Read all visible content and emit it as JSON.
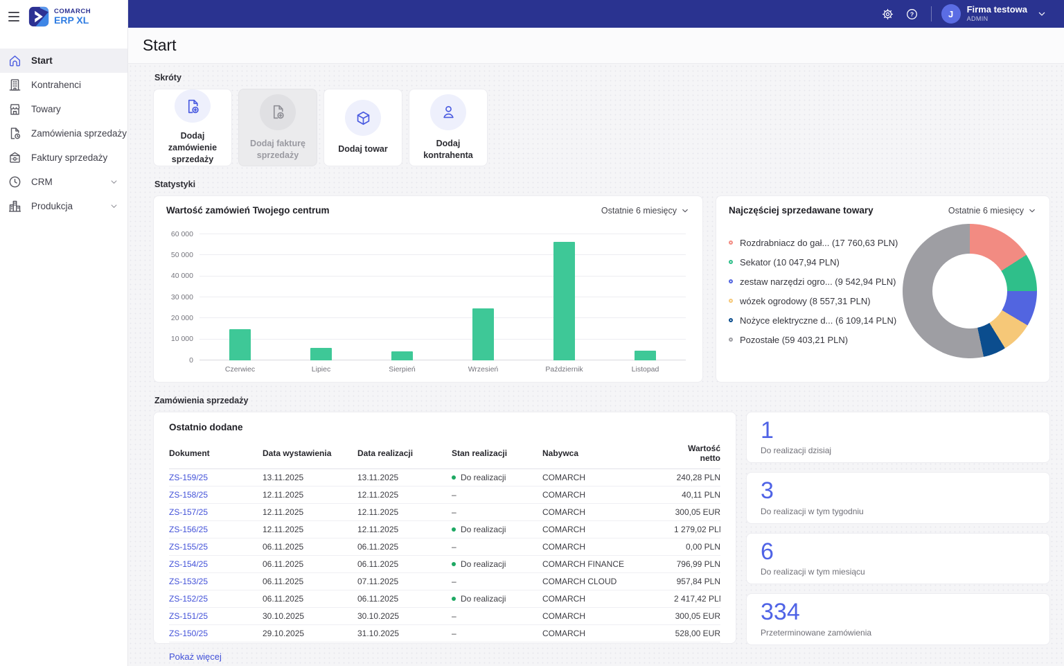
{
  "brand": {
    "name_line1": "COMARCH",
    "name_line2": "ERP XL"
  },
  "topbar": {
    "user": {
      "avatar_initial": "J",
      "company": "Firma testowa",
      "role": "ADMIN"
    }
  },
  "page": {
    "title": "Start"
  },
  "sidebar": {
    "items": [
      {
        "label": "Start",
        "icon": "home-icon",
        "active": true,
        "expandable": false
      },
      {
        "label": "Kontrahenci",
        "icon": "building-icon",
        "active": false,
        "expandable": false
      },
      {
        "label": "Towary",
        "icon": "store-icon",
        "active": false,
        "expandable": false
      },
      {
        "label": "Zamówienia sprzedaży",
        "icon": "order-document-icon",
        "active": false,
        "expandable": false
      },
      {
        "label": "Faktury sprzedaży",
        "icon": "invoice-icon",
        "active": false,
        "expandable": false
      },
      {
        "label": "CRM",
        "icon": "clock-icon",
        "active": false,
        "expandable": true
      },
      {
        "label": "Produkcja",
        "icon": "factory-icon",
        "active": false,
        "expandable": true
      }
    ]
  },
  "shortcuts": {
    "heading": "Skróty",
    "items": [
      {
        "label": "Dodaj zamówienie sprzedaży",
        "icon": "file-plus-icon",
        "disabled": false
      },
      {
        "label": "Dodaj fakturę sprzedaży",
        "icon": "file-plus-icon",
        "disabled": true
      },
      {
        "label": "Dodaj towar",
        "icon": "cube-icon",
        "disabled": false
      },
      {
        "label": "Dodaj kontrahenta",
        "icon": "person-icon",
        "disabled": false
      }
    ]
  },
  "stats": {
    "heading": "Statystyki"
  },
  "chart_data": [
    {
      "type": "bar",
      "title": "Wartość zamówień Twojego centrum",
      "period_filter": "Ostatnie 6 miesięcy",
      "categories": [
        "Czerwiec",
        "Lipiec",
        "Sierpień",
        "Wrzesień",
        "Październik",
        "Listopad"
      ],
      "values": [
        15000,
        6100,
        4300,
        24800,
        56300,
        4700
      ],
      "xlabel": "",
      "ylabel": "",
      "ylim": [
        0,
        60000
      ],
      "yticks": [
        60000,
        50000,
        40000,
        30000,
        20000,
        10000,
        0
      ],
      "ytick_labels": [
        "60 000",
        "50 000",
        "40 000",
        "30 000",
        "20 000",
        "10 000",
        "0"
      ],
      "grid": true,
      "bar_color": "#3ec897"
    },
    {
      "type": "donut",
      "title": "Najczęściej sprzedawane towary",
      "period_filter": "Ostatnie 6 miesięcy",
      "legend_position": "left",
      "segments": [
        {
          "label": "Rozdrabniacz do gał...",
          "value": 17760.63,
          "value_display": "(17 760,63 PLN)",
          "color": "#f28b82"
        },
        {
          "label": "Sekator",
          "value": 10047.94,
          "value_display": "(10 047,94 PLN)",
          "color": "#2fbf8a"
        },
        {
          "label": "zestaw narzędzi ogro...",
          "value": 9542.94,
          "value_display": "(9 542,94 PLN)",
          "color": "#5265e0"
        },
        {
          "label": "wózek ogrodowy",
          "value": 8557.31,
          "value_display": "(8 557,31 PLN)",
          "color": "#f6c878"
        },
        {
          "label": "Nożyce elektryczne d...",
          "value": 6109.14,
          "value_display": "(6 109,14 PLN)",
          "color": "#0b4d8e"
        },
        {
          "label": "Pozostałe",
          "value": 59403.21,
          "value_display": "(59 403,21 PLN)",
          "color": "#9e9ea3"
        }
      ]
    }
  ],
  "orders": {
    "heading": "Zamówienia sprzedaży",
    "card_title": "Ostatnio dodane",
    "columns": [
      "Dokument",
      "Data wystawienia",
      "Data realizacji",
      "Stan realizacji",
      "Nabywca",
      "Wartość netto"
    ],
    "rows": [
      {
        "document": "ZS-159/25",
        "issued": "13.11.2025",
        "realization": "13.11.2025",
        "status": "Do realizacji",
        "status_dot": true,
        "buyer": "COMARCH",
        "net_value": "240,28 PLN"
      },
      {
        "document": "ZS-158/25",
        "issued": "12.11.2025",
        "realization": "12.11.2025",
        "status": "–",
        "status_dot": false,
        "buyer": "COMARCH",
        "net_value": "40,11 PLN"
      },
      {
        "document": "ZS-157/25",
        "issued": "12.11.2025",
        "realization": "12.11.2025",
        "status": "–",
        "status_dot": false,
        "buyer": "COMARCH",
        "net_value": "300,05 EUR"
      },
      {
        "document": "ZS-156/25",
        "issued": "12.11.2025",
        "realization": "12.11.2025",
        "status": "Do realizacji",
        "status_dot": true,
        "buyer": "COMARCH",
        "net_value": "1 279,02 PLN"
      },
      {
        "document": "ZS-155/25",
        "issued": "06.11.2025",
        "realization": "06.11.2025",
        "status": "–",
        "status_dot": false,
        "buyer": "COMARCH",
        "net_value": "0,00 PLN"
      },
      {
        "document": "ZS-154/25",
        "issued": "06.11.2025",
        "realization": "06.11.2025",
        "status": "Do realizacji",
        "status_dot": true,
        "buyer": "COMARCH FINANCE",
        "net_value": "796,99 PLN"
      },
      {
        "document": "ZS-153/25",
        "issued": "06.11.2025",
        "realization": "07.11.2025",
        "status": "–",
        "status_dot": false,
        "buyer": "COMARCH CLOUD",
        "net_value": "957,84 PLN"
      },
      {
        "document": "ZS-152/25",
        "issued": "06.11.2025",
        "realization": "06.11.2025",
        "status": "Do realizacji",
        "status_dot": true,
        "buyer": "COMARCH",
        "net_value": "2 417,42 PLN"
      },
      {
        "document": "ZS-151/25",
        "issued": "30.10.2025",
        "realization": "30.10.2025",
        "status": "–",
        "status_dot": false,
        "buyer": "COMARCH",
        "net_value": "300,05 EUR"
      },
      {
        "document": "ZS-150/25",
        "issued": "29.10.2025",
        "realization": "31.10.2025",
        "status": "–",
        "status_dot": false,
        "buyer": "COMARCH",
        "net_value": "528,00 EUR"
      }
    ],
    "show_more": "Pokaż więcej"
  },
  "kpis": [
    {
      "value": "1",
      "label": "Do realizacji dzisiaj"
    },
    {
      "value": "3",
      "label": "Do realizacji w tym tygodniu"
    },
    {
      "value": "6",
      "label": "Do realizacji w tym miesiącu"
    },
    {
      "value": "334",
      "label": "Przeterminowane zamówienia"
    }
  ],
  "colors": {
    "topbar": "#2a3390",
    "accent": "#4a5be0",
    "kpi_number": "#4f63e6",
    "link": "#4150d8",
    "bar_green": "#3ec897",
    "status_green": "#1ea863"
  }
}
